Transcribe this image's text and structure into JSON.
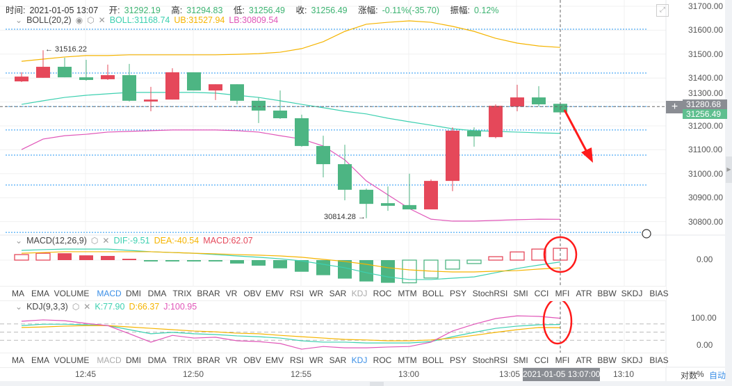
{
  "header": {
    "time_label": "时间:",
    "time": "2021-01-05 13:07",
    "open_label": "开:",
    "open": "31292.19",
    "high_label": "高:",
    "high": "31294.83",
    "low_label": "低:",
    "low": "31256.49",
    "close_label": "收:",
    "close": "31256.49",
    "change_label": "涨幅:",
    "change": "-0.11%(-35.70)",
    "amp_label": "振幅:",
    "amp": "0.12%"
  },
  "boll": {
    "name": "BOLL(20,2)",
    "boll": "BOLL:31168.74",
    "ub": "UB:31527.94",
    "lb": "LB:30809.54"
  },
  "macd": {
    "name": "MACD(12,26,9)",
    "dif": "DIF:-9.51",
    "dea": "DEA:-40.54",
    "macd": "MACD:62.07"
  },
  "kdj": {
    "name": "KDJ(9,3,3)",
    "k": "K:77.90",
    "d": "D:66.37",
    "j": "J:100.95"
  },
  "price_axis": [
    "31700.00",
    "31600.00",
    "31500.00",
    "31400.00",
    "31300.00",
    "31200.00",
    "31100.00",
    "31000.00",
    "30900.00",
    "30800.00"
  ],
  "crosshair_price": "31280.68",
  "last_price": "31256.49",
  "macd_axis": [
    "0.00"
  ],
  "kdj_axis": [
    "100.00",
    "0.00"
  ],
  "annotations": {
    "high": "← 31516.22",
    "low": "30814.28 →"
  },
  "indicator_tabs": [
    "MA",
    "EMA",
    "VOLUME",
    "MACD",
    "DMI",
    "DMA",
    "TRIX",
    "BRAR",
    "VR",
    "OBV",
    "EMV",
    "RSI",
    "WR",
    "SAR",
    "KDJ",
    "ROC",
    "MTM",
    "BOLL",
    "PSY",
    "StochRSI",
    "SMI",
    "CCI",
    "MFI",
    "ATR",
    "BBW",
    "SKDJ",
    "BIAS"
  ],
  "active_tab_top": "MACD",
  "active_tab_bottom": "KDJ",
  "time_axis": [
    "12:45",
    "12:50",
    "12:55",
    "13:00",
    "13:05",
    "13:10"
  ],
  "crosshair_time": "2021-01-05 13:07:00",
  "footer": {
    "log": "对数",
    "percent": "%",
    "auto": "自动"
  },
  "colors": {
    "up": "#e5485a",
    "down": "#4db583",
    "boll": "#3dd0b0",
    "ub": "#f5b400",
    "lb": "#e055b8",
    "dif": "#3dd0b0",
    "dea": "#f5b400",
    "k": "#3dd0b0",
    "d": "#f5b400",
    "j": "#e055b8",
    "level": "#2196f3",
    "accent": "#3a8ee6",
    "annotation": "#ff1a1a"
  },
  "chart_data": {
    "type": "candlestick",
    "times": [
      "12:42",
      "12:43",
      "12:44",
      "12:45",
      "12:46",
      "12:47",
      "12:48",
      "12:49",
      "12:50",
      "12:51",
      "12:52",
      "12:53",
      "12:54",
      "12:55",
      "12:56",
      "12:57",
      "12:58",
      "12:59",
      "13:00",
      "13:01",
      "13:02",
      "13:03",
      "13:04",
      "13:05",
      "13:06",
      "13:07"
    ],
    "ohlc": [
      [
        31386,
        31424,
        31383,
        31406
      ],
      [
        31401,
        31516.22,
        31401,
        31447
      ],
      [
        31447,
        31485,
        31403,
        31403
      ],
      [
        31403,
        31476,
        31389,
        31392
      ],
      [
        31395,
        31456,
        31392,
        31412
      ],
      [
        31412,
        31459,
        31302,
        31305
      ],
      [
        31302,
        31363,
        31261,
        31310
      ],
      [
        31310,
        31441,
        31310,
        31424
      ],
      [
        31424,
        31424,
        31348,
        31348
      ],
      [
        31348,
        31374,
        31308,
        31374
      ],
      [
        31374,
        31374,
        31290,
        31305
      ],
      [
        31305,
        31319,
        31212,
        31264
      ],
      [
        31264,
        31348,
        31229,
        31232
      ],
      [
        31232,
        31247,
        31113,
        31116
      ],
      [
        31116,
        31159,
        30985,
        31040
      ],
      [
        31040,
        31121,
        30889,
        30933
      ],
      [
        30933,
        30938,
        30814.28,
        30874
      ],
      [
        30877,
        30947,
        30845,
        30866
      ],
      [
        30869,
        31000,
        30851,
        30851
      ],
      [
        30851,
        30976,
        30851,
        30970
      ],
      [
        30970,
        31194,
        30927,
        31180
      ],
      [
        31180,
        31194,
        31113,
        31156
      ],
      [
        31153,
        31290,
        31148,
        31284
      ],
      [
        31281,
        31372,
        31261,
        31319
      ],
      [
        31319,
        31366,
        31281,
        31290
      ],
      [
        31292.19,
        31294.83,
        31256.49,
        31256.49
      ]
    ],
    "boll_ub": [
      31470,
      31479,
      31488,
      31494,
      31494,
      31497,
      31497,
      31497,
      31497,
      31497,
      31499,
      31502,
      31508,
      31523,
      31552,
      31595,
      31625,
      31633,
      31639,
      31633,
      31616,
      31595,
      31566,
      31546,
      31534,
      31527.94
    ],
    "boll_mid": [
      31290,
      31305,
      31319,
      31328,
      31334,
      31340,
      31340,
      31340,
      31340,
      31337,
      31328,
      31319,
      31305,
      31290,
      31276,
      31261,
      31250,
      31232,
      31217,
      31203,
      31188,
      31180,
      31177,
      31174,
      31171,
      31168.74
    ],
    "boll_lb": [
      31101,
      31145,
      31159,
      31165,
      31174,
      31177,
      31180,
      31183,
      31183,
      31183,
      31180,
      31174,
      31159,
      31145,
      31116,
      31058,
      30970,
      30912,
      30854,
      30810,
      30802,
      30802,
      30805,
      30808,
      30810,
      30809.54
    ],
    "level_lines": [
      31604,
      31421,
      31281,
      31183,
      31078,
      30953,
      30755
    ],
    "price_range": [
      30760,
      31700
    ],
    "macd_hist": [
      29,
      36,
      36,
      25,
      22,
      7,
      -7,
      -7,
      -7,
      -7,
      -18,
      -29,
      -43,
      -61,
      -79,
      -97,
      -112,
      -119,
      -119,
      -94,
      -47,
      -18,
      18,
      43,
      58,
      62.07
    ],
    "macd_hist_hollow": [
      true,
      true,
      false,
      false,
      false,
      false,
      false,
      false,
      false,
      false,
      false,
      false,
      false,
      false,
      false,
      false,
      false,
      false,
      true,
      true,
      true,
      true,
      true,
      true,
      true,
      true
    ],
    "dif": [
      51,
      55,
      58,
      58,
      58,
      51,
      44,
      40,
      36,
      29,
      22,
      15,
      7,
      -4,
      -22,
      -40,
      -66,
      -88,
      -102,
      -102,
      -95,
      -88,
      -66,
      -44,
      -26,
      -9.51
    ],
    "dea": [
      36,
      40,
      44,
      44,
      44,
      44,
      44,
      40,
      36,
      33,
      29,
      26,
      22,
      15,
      4,
      -7,
      -22,
      -40,
      -51,
      -58,
      -62,
      -62,
      -58,
      -55,
      -47,
      -40.54
    ],
    "k": [
      74,
      79,
      79,
      77,
      74,
      59,
      44,
      49,
      44,
      41,
      36,
      33,
      28,
      18,
      13,
      13,
      10,
      10,
      10,
      15,
      33,
      49,
      64,
      72,
      77,
      77.9
    ],
    "d": [
      67,
      69,
      72,
      74,
      74,
      69,
      64,
      59,
      54,
      51,
      46,
      44,
      38,
      33,
      28,
      23,
      21,
      18,
      18,
      21,
      28,
      38,
      49,
      59,
      67,
      66.37
    ],
    "j": [
      90,
      95,
      92,
      82,
      74,
      44,
      13,
      38,
      28,
      31,
      18,
      15,
      8,
      -13,
      -3,
      -8,
      -8,
      -5,
      -3,
      13,
      54,
      79,
      100,
      110,
      108,
      100.95
    ],
    "kdj_guides": [
      80,
      50,
      20
    ]
  }
}
